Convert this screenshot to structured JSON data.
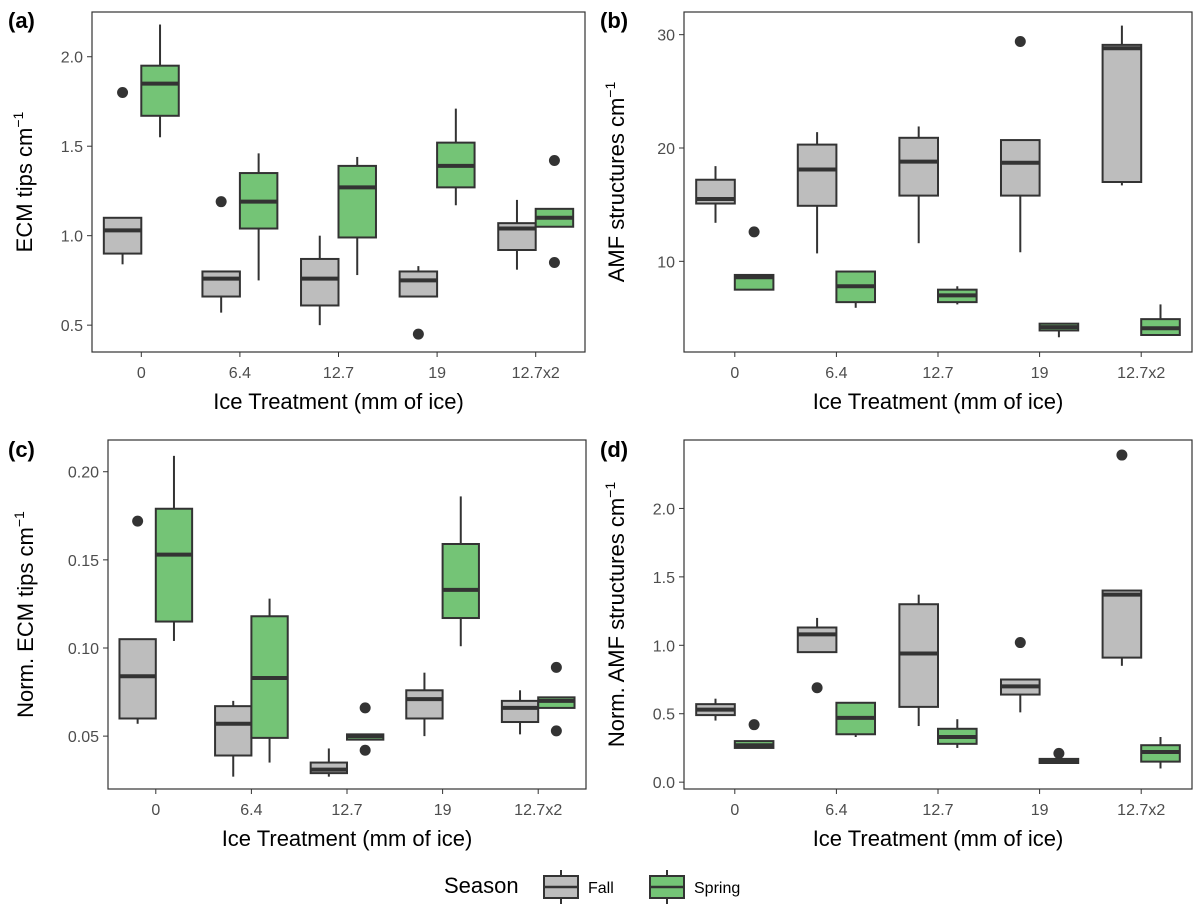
{
  "legend": {
    "title": "Season",
    "entries": [
      {
        "name": "Fall",
        "color": "#bdbdbd"
      },
      {
        "name": "Spring",
        "color": "#74c476"
      }
    ]
  },
  "chart_data": [
    {
      "type": "boxplot",
      "panel_label": "(a)",
      "xlabel": "Ice Treatment (mm of ice)",
      "ylabel": "ECM tips cm",
      "ylabel_superscript": "−1",
      "categories": [
        "0",
        "6.4",
        "12.7",
        "19",
        "12.7x2"
      ],
      "ylim": [
        0.35,
        2.25
      ],
      "yticks": [
        0.5,
        1.0,
        1.5,
        2.0
      ],
      "ytick_labels": [
        "0.5",
        "1.0",
        "1.5",
        "2.0"
      ],
      "series": [
        {
          "name": "Fall",
          "color": "#bdbdbd",
          "boxes": [
            {
              "min": 0.84,
              "q1": 0.9,
              "median": 1.03,
              "q3": 1.1,
              "max": 1.1,
              "outliers": [
                1.8
              ]
            },
            {
              "min": 0.57,
              "q1": 0.66,
              "median": 0.76,
              "q3": 0.8,
              "max": 0.8,
              "outliers": [
                1.19
              ]
            },
            {
              "min": 0.5,
              "q1": 0.61,
              "median": 0.76,
              "q3": 0.87,
              "max": 1.0,
              "outliers": []
            },
            {
              "min": 0.66,
              "q1": 0.66,
              "median": 0.75,
              "q3": 0.8,
              "max": 0.83,
              "outliers": [
                0.45
              ]
            },
            {
              "min": 0.81,
              "q1": 0.92,
              "median": 1.04,
              "q3": 1.07,
              "max": 1.2,
              "outliers": []
            }
          ]
        },
        {
          "name": "Spring",
          "color": "#74c476",
          "boxes": [
            {
              "min": 1.55,
              "q1": 1.67,
              "median": 1.85,
              "q3": 1.95,
              "max": 2.18,
              "outliers": []
            },
            {
              "min": 0.75,
              "q1": 1.04,
              "median": 1.19,
              "q3": 1.35,
              "max": 1.46,
              "outliers": []
            },
            {
              "min": 0.78,
              "q1": 0.99,
              "median": 1.27,
              "q3": 1.39,
              "max": 1.44,
              "outliers": []
            },
            {
              "min": 1.17,
              "q1": 1.27,
              "median": 1.39,
              "q3": 1.52,
              "max": 1.71,
              "outliers": []
            },
            {
              "min": 1.05,
              "q1": 1.05,
              "median": 1.1,
              "q3": 1.15,
              "max": 1.15,
              "outliers": [
                1.42,
                0.85
              ]
            }
          ]
        }
      ]
    },
    {
      "type": "boxplot",
      "panel_label": "(b)",
      "xlabel": "Ice Treatment (mm of ice)",
      "ylabel": "AMF structures cm",
      "ylabel_superscript": "−1",
      "categories": [
        "0",
        "6.4",
        "12.7",
        "19",
        "12.7x2"
      ],
      "ylim": [
        2.0,
        32.0
      ],
      "yticks": [
        10,
        20,
        30
      ],
      "ytick_labels": [
        "10",
        "20",
        "30"
      ],
      "series": [
        {
          "name": "Fall",
          "color": "#bdbdbd",
          "boxes": [
            {
              "min": 13.4,
              "q1": 15.1,
              "median": 15.5,
              "q3": 17.2,
              "max": 18.4,
              "outliers": []
            },
            {
              "min": 10.7,
              "q1": 14.9,
              "median": 18.1,
              "q3": 20.3,
              "max": 21.4,
              "outliers": []
            },
            {
              "min": 11.6,
              "q1": 15.8,
              "median": 18.8,
              "q3": 20.9,
              "max": 21.9,
              "outliers": []
            },
            {
              "min": 10.8,
              "q1": 15.8,
              "median": 18.7,
              "q3": 20.7,
              "max": 20.7,
              "outliers": [
                29.4
              ]
            },
            {
              "min": 16.7,
              "q1": 17.0,
              "median": 28.8,
              "q3": 29.1,
              "max": 30.8,
              "outliers": []
            }
          ]
        },
        {
          "name": "Spring",
          "color": "#74c476",
          "boxes": [
            {
              "min": 7.5,
              "q1": 7.5,
              "median": 8.6,
              "q3": 8.8,
              "max": 8.8,
              "outliers": [
                12.6
              ]
            },
            {
              "min": 5.9,
              "q1": 6.4,
              "median": 7.8,
              "q3": 9.1,
              "max": 9.1,
              "outliers": []
            },
            {
              "min": 6.2,
              "q1": 6.4,
              "median": 7.0,
              "q3": 7.5,
              "max": 7.8,
              "outliers": []
            },
            {
              "min": 3.3,
              "q1": 3.9,
              "median": 4.2,
              "q3": 4.5,
              "max": 4.5,
              "outliers": []
            },
            {
              "min": 3.5,
              "q1": 3.5,
              "median": 4.1,
              "q3": 4.9,
              "max": 6.2,
              "outliers": []
            }
          ]
        }
      ]
    },
    {
      "type": "boxplot",
      "panel_label": "(c)",
      "xlabel": "Ice Treatment (mm of ice)",
      "ylabel": "Norm. ECM tips cm",
      "ylabel_superscript": "−1",
      "categories": [
        "0",
        "6.4",
        "12.7",
        "19",
        "12.7x2"
      ],
      "ylim": [
        0.02,
        0.218
      ],
      "yticks": [
        0.05,
        0.1,
        0.15,
        0.2
      ],
      "ytick_labels": [
        "0.05",
        "0.10",
        "0.15",
        "0.20"
      ],
      "series": [
        {
          "name": "Fall",
          "color": "#bdbdbd",
          "boxes": [
            {
              "min": 0.057,
              "q1": 0.06,
              "median": 0.084,
              "q3": 0.105,
              "max": 0.105,
              "outliers": [
                0.172
              ]
            },
            {
              "min": 0.027,
              "q1": 0.039,
              "median": 0.057,
              "q3": 0.067,
              "max": 0.07,
              "outliers": []
            },
            {
              "min": 0.027,
              "q1": 0.029,
              "median": 0.031,
              "q3": 0.035,
              "max": 0.043,
              "outliers": []
            },
            {
              "min": 0.05,
              "q1": 0.06,
              "median": 0.071,
              "q3": 0.076,
              "max": 0.086,
              "outliers": []
            },
            {
              "min": 0.051,
              "q1": 0.058,
              "median": 0.066,
              "q3": 0.07,
              "max": 0.076,
              "outliers": []
            }
          ]
        },
        {
          "name": "Spring",
          "color": "#74c476",
          "boxes": [
            {
              "min": 0.104,
              "q1": 0.115,
              "median": 0.153,
              "q3": 0.179,
              "max": 0.209,
              "outliers": []
            },
            {
              "min": 0.035,
              "q1": 0.049,
              "median": 0.083,
              "q3": 0.118,
              "max": 0.128,
              "outliers": []
            },
            {
              "min": 0.048,
              "q1": 0.048,
              "median": 0.05,
              "q3": 0.051,
              "max": 0.051,
              "outliers": [
                0.066,
                0.042
              ]
            },
            {
              "min": 0.101,
              "q1": 0.117,
              "median": 0.133,
              "q3": 0.159,
              "max": 0.186,
              "outliers": []
            },
            {
              "min": 0.066,
              "q1": 0.066,
              "median": 0.07,
              "q3": 0.072,
              "max": 0.072,
              "outliers": [
                0.089,
                0.053
              ]
            }
          ]
        }
      ]
    },
    {
      "type": "boxplot",
      "panel_label": "(d)",
      "xlabel": "Ice Treatment (mm of ice)",
      "ylabel": "Norm. AMF structures cm",
      "ylabel_superscript": "−1",
      "categories": [
        "0",
        "6.4",
        "12.7",
        "19",
        "12.7x2"
      ],
      "ylim": [
        -0.05,
        2.5
      ],
      "yticks": [
        0.0,
        0.5,
        1.0,
        1.5,
        2.0
      ],
      "ytick_labels": [
        "0.0",
        "0.5",
        "1.0",
        "1.5",
        "2.0"
      ],
      "series": [
        {
          "name": "Fall",
          "color": "#bdbdbd",
          "boxes": [
            {
              "min": 0.45,
              "q1": 0.49,
              "median": 0.53,
              "q3": 0.57,
              "max": 0.61,
              "outliers": []
            },
            {
              "min": 0.95,
              "q1": 0.95,
              "median": 1.08,
              "q3": 1.13,
              "max": 1.2,
              "outliers": [
                0.69
              ]
            },
            {
              "min": 0.41,
              "q1": 0.55,
              "median": 0.94,
              "q3": 1.3,
              "max": 1.37,
              "outliers": []
            },
            {
              "min": 0.51,
              "q1": 0.64,
              "median": 0.7,
              "q3": 0.75,
              "max": 0.75,
              "outliers": [
                1.02
              ]
            },
            {
              "min": 0.85,
              "q1": 0.91,
              "median": 1.37,
              "q3": 1.4,
              "max": 1.4,
              "outliers": [
                2.39
              ]
            }
          ]
        },
        {
          "name": "Spring",
          "color": "#74c476",
          "boxes": [
            {
              "min": 0.25,
              "q1": 0.25,
              "median": 0.27,
              "q3": 0.3,
              "max": 0.3,
              "outliers": [
                0.42
              ]
            },
            {
              "min": 0.33,
              "q1": 0.35,
              "median": 0.47,
              "q3": 0.58,
              "max": 0.58,
              "outliers": []
            },
            {
              "min": 0.25,
              "q1": 0.28,
              "median": 0.33,
              "q3": 0.39,
              "max": 0.46,
              "outliers": []
            },
            {
              "min": 0.14,
              "q1": 0.14,
              "median": 0.15,
              "q3": 0.17,
              "max": 0.17,
              "outliers": [
                0.21
              ]
            },
            {
              "min": 0.1,
              "q1": 0.15,
              "median": 0.22,
              "q3": 0.27,
              "max": 0.33,
              "outliers": []
            }
          ]
        }
      ]
    }
  ]
}
